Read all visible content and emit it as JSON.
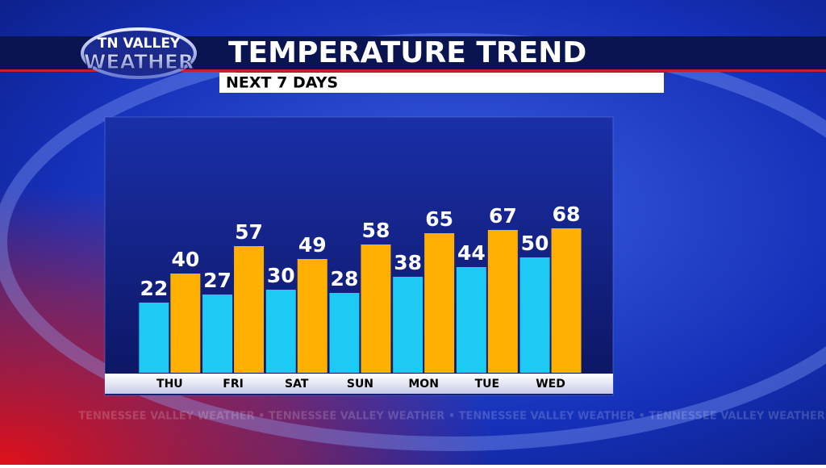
{
  "chart_data": {
    "type": "bar",
    "logo": {
      "line1": "TN VALLEY",
      "line2": "WEATHER"
    },
    "title": "TEMPERATURE TREND",
    "subtitle": "NEXT 7 DAYS",
    "watermark": "TENNESSEE VALLEY WEATHER • TENNESSEE VALLEY WEATHER • TENNESSEE VALLEY WEATHER • TENNESSEE VALLEY WEATHER",
    "categories": [
      "THU",
      "FRI",
      "SAT",
      "SUN",
      "MON",
      "TUE",
      "WED"
    ],
    "series": [
      {
        "color": "#1ccaf3",
        "values": [
          22,
          27,
          30,
          28,
          38,
          44,
          50
        ]
      },
      {
        "color": "#ffb000",
        "values": [
          40,
          57,
          49,
          58,
          65,
          67,
          68
        ]
      }
    ]
  }
}
